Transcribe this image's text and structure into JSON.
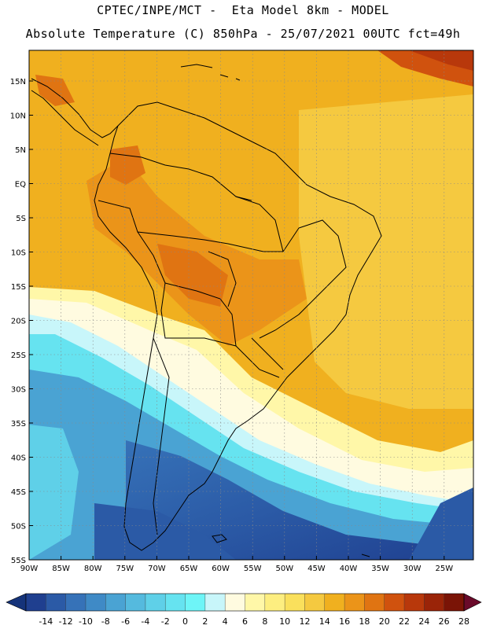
{
  "title_line1": "CPTEC/INPE/MCT -  Eta Model 8km - MODEL",
  "title_line2": "Absolute Temperature (C) 850hPa - 25/07/2021 00UTC fct=49h",
  "lat_labels": [
    "15N",
    "10N",
    "5N",
    "EQ",
    "5S",
    "10S",
    "15S",
    "20S",
    "25S",
    "30S",
    "35S",
    "40S",
    "45S",
    "50S",
    "55S"
  ],
  "lon_labels": [
    "90W",
    "85W",
    "80W",
    "75W",
    "70W",
    "65W",
    "60W",
    "55W",
    "50W",
    "45W",
    "40W",
    "35W",
    "30W",
    "25W"
  ],
  "colorbar": {
    "ticks": [
      "-14",
      "-12",
      "-10",
      "-8",
      "-6",
      "-4",
      "-2",
      "0",
      "2",
      "4",
      "6",
      "8",
      "10",
      "12",
      "14",
      "16",
      "18",
      "20",
      "22",
      "24",
      "26",
      "28"
    ],
    "colors": [
      "#1f3f8f",
      "#2b5aa6",
      "#3672b8",
      "#3f8ac6",
      "#4aa3d3",
      "#55bade",
      "#5fd0e8",
      "#66e3f0",
      "#6ef5f7",
      "#c8f6fa",
      "#fffbe0",
      "#fff7a8",
      "#fdee80",
      "#fae05c",
      "#f5c940",
      "#f0b01f",
      "#eb9419",
      "#e07412",
      "#d0520e",
      "#b8380b",
      "#9a2408",
      "#7a1406"
    ],
    "under_color": "#15337a",
    "over_color": "#6a0a2a"
  }
}
